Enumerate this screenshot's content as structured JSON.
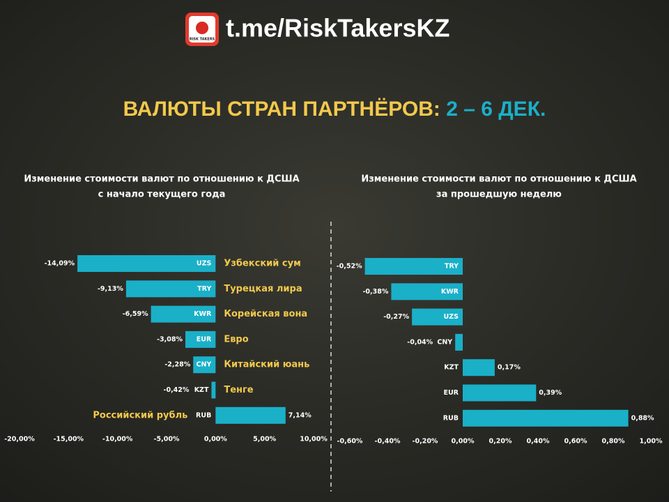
{
  "header": {
    "link": "t.me/RiskTakersKZ",
    "logo_text": "RISK TAKERS"
  },
  "title": {
    "main": "ВАЛЮТЫ СТРАН ПАРТНЁРОВ:",
    "accent": "2 – 6 ДЕК."
  },
  "chart_data": [
    {
      "type": "hbar",
      "title_lines": [
        "Изменение стоимости валют по отношению к ДСША",
        "с начало текущего года"
      ],
      "categories": [
        "UZS",
        "TRY",
        "KWR",
        "EUR",
        "CNY",
        "KZT",
        "RUB"
      ],
      "currency_names": [
        "Узбекский сум",
        "Турецкая лира",
        "Корейская вона",
        "Евро",
        "Китайский юань",
        "Тенге",
        "Российский рубль"
      ],
      "values": [
        -14.09,
        -9.13,
        -6.59,
        -3.08,
        -2.28,
        -0.42,
        7.14
      ],
      "value_labels": [
        "-14,09%",
        "-9,13%",
        "-6,59%",
        "-3,08%",
        "-2,28%",
        "-0,42%",
        "7,14%"
      ],
      "color": "#1ab0c8",
      "xlim": [
        -20,
        10
      ],
      "xticks": [
        {
          "value": -20,
          "label": "-20,00%"
        },
        {
          "value": -15,
          "label": "-15,00%"
        },
        {
          "value": -10,
          "label": "-10,00%"
        },
        {
          "value": -5,
          "label": "-5,00%"
        },
        {
          "value": 0,
          "label": "0,00%"
        },
        {
          "value": 5,
          "label": "5,00%"
        },
        {
          "value": 10,
          "label": "10,00%"
        }
      ]
    },
    {
      "type": "hbar",
      "title_lines": [
        "Изменение стоимости валют по отношению к ДСША",
        "за прошедшую неделю"
      ],
      "categories": [
        "TRY",
        "KWR",
        "UZS",
        "CNY",
        "KZT",
        "EUR",
        "RUB"
      ],
      "values": [
        -0.52,
        -0.38,
        -0.27,
        -0.04,
        0.17,
        0.39,
        0.88
      ],
      "value_labels": [
        "-0,52%",
        "-0,38%",
        "-0,27%",
        "-0,04%",
        "0,17%",
        "0,39%",
        "0,88%"
      ],
      "color": "#1ab0c8",
      "xlim": [
        -0.6,
        1.0
      ],
      "xticks": [
        {
          "value": -0.6,
          "label": "-0,60%"
        },
        {
          "value": -0.4,
          "label": "-0,40%"
        },
        {
          "value": -0.2,
          "label": "-0,20%"
        },
        {
          "value": 0,
          "label": "0,00%"
        },
        {
          "value": 0.2,
          "label": "0,20%"
        },
        {
          "value": 0.4,
          "label": "0,40%"
        },
        {
          "value": 0.6,
          "label": "0,60%"
        },
        {
          "value": 0.8,
          "label": "0,80%"
        },
        {
          "value": 1.0,
          "label": "1,00%"
        }
      ]
    }
  ]
}
